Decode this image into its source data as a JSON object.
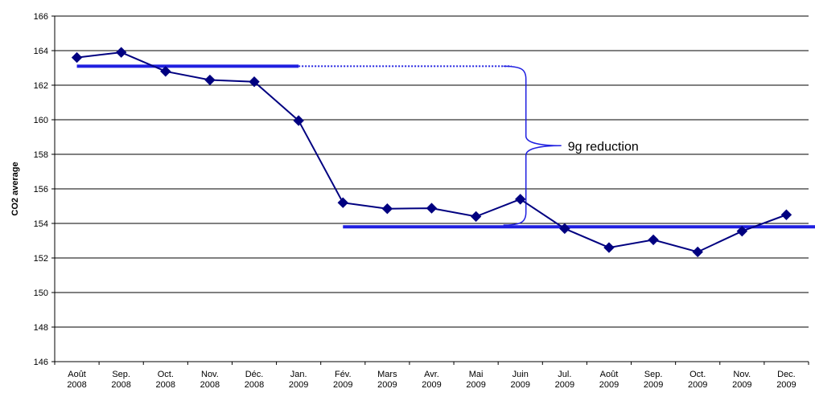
{
  "chart_data": {
    "type": "line",
    "title": "",
    "xlabel": "",
    "ylabel": "CO2 average",
    "ylim": [
      146,
      166
    ],
    "yticks": [
      146,
      148,
      150,
      152,
      154,
      156,
      158,
      160,
      162,
      164,
      166
    ],
    "grid": "horizontal",
    "categories": [
      [
        "Août",
        "2008"
      ],
      [
        "Sep.",
        "2008"
      ],
      [
        "Oct.",
        "2008"
      ],
      [
        "Nov.",
        "2008"
      ],
      [
        "Déc.",
        "2008"
      ],
      [
        "Jan.",
        "2009"
      ],
      [
        "Fév.",
        "2009"
      ],
      [
        "Mars",
        "2009"
      ],
      [
        "Avr.",
        "2009"
      ],
      [
        "Mai",
        "2009"
      ],
      [
        "Juin",
        "2009"
      ],
      [
        "Jul.",
        "2009"
      ],
      [
        "Août",
        "2009"
      ],
      [
        "Sep.",
        "2009"
      ],
      [
        "Oct.",
        "2009"
      ],
      [
        "Nov.",
        "2009"
      ],
      [
        "Dec.",
        "2009"
      ]
    ],
    "series": [
      {
        "values": [
          163.6,
          163.9,
          162.8,
          162.3,
          162.2,
          159.95,
          155.2,
          154.85,
          154.88,
          154.4,
          155.4,
          153.7,
          152.6,
          153.05,
          152.35,
          153.55,
          154.5
        ],
        "color": "#000080",
        "marker": "diamond"
      }
    ],
    "reference_lines": [
      {
        "value": 163.1,
        "from_index": 0,
        "to_index": 5,
        "style": "solid",
        "color": "#1f1fe0"
      },
      {
        "value": 163.1,
        "from_index": 5,
        "to_index": 9.8,
        "style": "dotted",
        "color": "#1f1fe0"
      },
      {
        "value": 153.8,
        "from_index": 6,
        "to_index": 16.8,
        "style": "solid",
        "color": "#1f1fe0"
      }
    ],
    "annotations": [
      {
        "text": "9g reduction",
        "type": "brace",
        "from_value": 163.1,
        "to_value": 153.9,
        "at_index": 9.8
      }
    ]
  }
}
